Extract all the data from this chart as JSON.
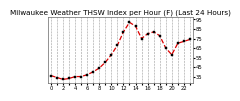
{
  "title": "Milwaukee Weather THSW Index per Hour (F) (Last 24 Hours)",
  "x": [
    0,
    1,
    2,
    3,
    4,
    5,
    6,
    7,
    8,
    9,
    10,
    11,
    12,
    13,
    14,
    15,
    16,
    17,
    18,
    19,
    20,
    21,
    22,
    23
  ],
  "values": [
    36,
    34,
    32,
    33,
    35,
    35,
    37,
    40,
    44,
    50,
    58,
    68,
    82,
    92,
    88,
    75,
    80,
    82,
    78,
    65,
    58,
    70,
    72,
    74
  ],
  "ylim": [
    28,
    98
  ],
  "yticks": [
    35,
    45,
    55,
    65,
    75,
    85,
    95
  ],
  "ytick_labels": [
    "35",
    "45",
    "55",
    "65",
    "75",
    "85",
    "95"
  ],
  "grid_xticks": [
    0,
    2,
    4,
    6,
    8,
    10,
    12,
    14,
    16,
    18,
    20,
    22
  ],
  "line_color": "#dd0000",
  "marker_color": "#000000",
  "bg_color": "#ffffff",
  "grid_color": "#999999",
  "title_fontsize": 5.2,
  "tick_fontsize": 3.8,
  "line_width": 0.9,
  "marker_size": 1.6
}
